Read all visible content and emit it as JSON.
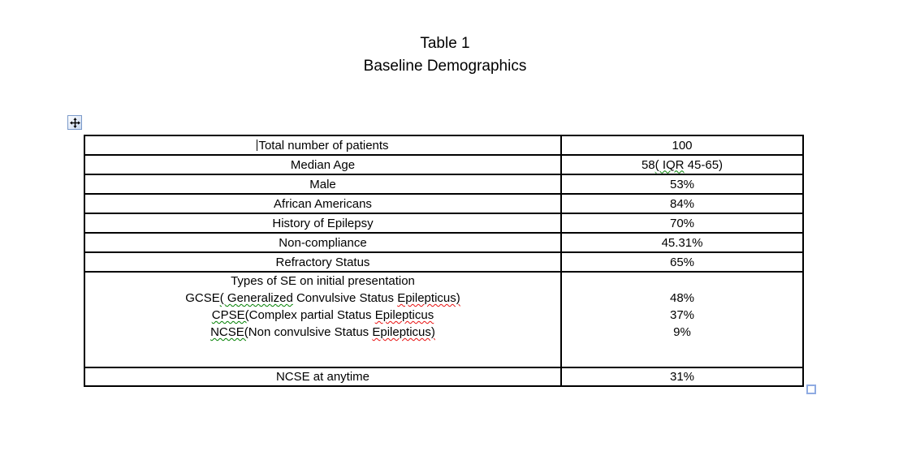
{
  "page_title": {
    "line1": "Table 1",
    "line2": "Baseline Demographics"
  },
  "controls": {
    "move_handle_icon": "move-cross",
    "resize_handle_icon": "table-resize-square"
  },
  "colors": {
    "table_border": "#000000",
    "squiggle_green": "#008000",
    "squiggle_red": "#e81010",
    "handle_blue": "#8fabe2"
  },
  "table": {
    "columns": [
      "attribute",
      "value"
    ],
    "rows": [
      {
        "label_lines": [
          [
            {
              "caret": true,
              "t": "Total number of patients"
            }
          ]
        ],
        "value_lines": [
          [
            {
              "t": "100"
            }
          ]
        ]
      },
      {
        "label_lines": [
          [
            {
              "t": "Median Age"
            }
          ]
        ],
        "value_lines": [
          [
            {
              "t": "58"
            },
            {
              "t": "( IQR",
              "u": "green"
            },
            {
              "t": " 45-65)"
            }
          ]
        ]
      },
      {
        "label_lines": [
          [
            {
              "t": "Male"
            }
          ]
        ],
        "value_lines": [
          [
            {
              "t": "53%"
            }
          ]
        ]
      },
      {
        "label_lines": [
          [
            {
              "t": "African Americans"
            }
          ]
        ],
        "value_lines": [
          [
            {
              "t": "84%"
            }
          ]
        ]
      },
      {
        "label_lines": [
          [
            {
              "t": "History of Epilepsy"
            }
          ]
        ],
        "value_lines": [
          [
            {
              "t": "70%"
            }
          ]
        ]
      },
      {
        "label_lines": [
          [
            {
              "t": "Non-compliance"
            }
          ]
        ],
        "value_lines": [
          [
            {
              "t": "45.31%"
            }
          ]
        ]
      },
      {
        "label_lines": [
          [
            {
              "t": "Refractory Status"
            }
          ]
        ],
        "value_lines": [
          [
            {
              "t": "65%"
            }
          ]
        ]
      },
      {
        "label_lines": [
          [
            {
              "t": "Types of SE on initial presentation"
            }
          ],
          [
            {
              "t": "GCSE"
            },
            {
              "t": "( Generalized",
              "u": "green"
            },
            {
              "t": " Convulsive Status "
            },
            {
              "t": "Epilepticus)",
              "u": "red"
            }
          ],
          [
            {
              "t": "CPSE(",
              "u": "green"
            },
            {
              "t": "Complex partial Status "
            },
            {
              "t": "Epilepticus",
              "u": "red"
            }
          ],
          [
            {
              "t": "NCSE(",
              "u": "green"
            },
            {
              "t": "Non convulsive Status "
            },
            {
              "t": "Epilepticus)",
              "u": "red"
            }
          ],
          [
            {
              "t": ""
            }
          ]
        ],
        "value_lines": [
          [
            {
              "t": ""
            }
          ],
          [
            {
              "t": "48%"
            }
          ],
          [
            {
              "t": "37%"
            }
          ],
          [
            {
              "t": "9%"
            }
          ],
          [
            {
              "t": ""
            }
          ]
        ]
      },
      {
        "label_lines": [
          [
            {
              "t": "NCSE at anytime"
            }
          ]
        ],
        "value_lines": [
          [
            {
              "t": "31%"
            }
          ]
        ]
      }
    ]
  }
}
